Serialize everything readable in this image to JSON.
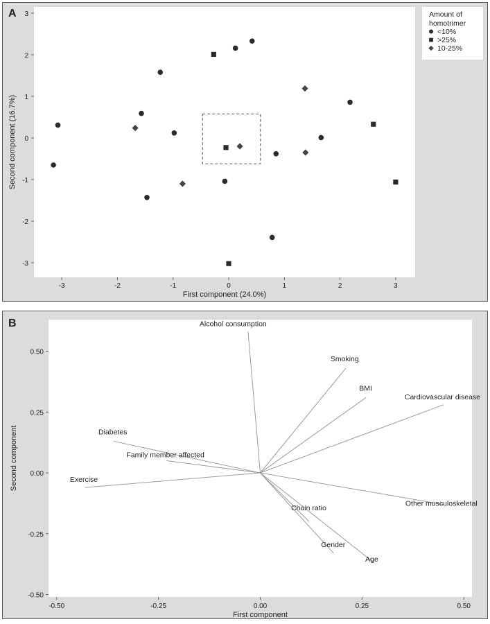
{
  "chart_data": [
    {
      "type": "scatter",
      "panel_label": "A",
      "title": "",
      "xlabel": "First component (24.0%)",
      "ylabel": "Second component (16.7%)",
      "xlim": [
        -3.5,
        3.35
      ],
      "ylim": [
        -3.35,
        3.15
      ],
      "xticks": [
        -3,
        -2,
        -1,
        0,
        1,
        2,
        3
      ],
      "yticks": [
        3,
        2,
        1,
        0,
        -1,
        -2,
        -3
      ],
      "grid": false,
      "legend": {
        "title_line1": "Amount of",
        "title_line2": "homotrimer",
        "placement": "top-right"
      },
      "highlight_box": {
        "x": [
          -0.47,
          0.57
        ],
        "y": [
          -0.62,
          0.58
        ]
      },
      "series": [
        {
          "name": "<10%",
          "marker": "circle",
          "points": [
            [
              -3.15,
              -0.65
            ],
            [
              -3.07,
              0.31
            ],
            [
              -1.23,
              1.58
            ],
            [
              -1.57,
              0.59
            ],
            [
              -0.98,
              0.12
            ],
            [
              -1.47,
              -1.43
            ],
            [
              0.12,
              2.16
            ],
            [
              0.42,
              2.33
            ],
            [
              -0.07,
              -1.04
            ],
            [
              0.85,
              -0.38
            ],
            [
              1.66,
              0.01
            ],
            [
              2.18,
              0.86
            ],
            [
              0.78,
              -2.39
            ]
          ]
        },
        {
          "name": ">25%",
          "marker": "square",
          "points": [
            [
              -0.27,
              2.01
            ],
            [
              -0.05,
              -0.23
            ],
            [
              0.0,
              -3.02
            ],
            [
              2.6,
              0.33
            ],
            [
              3.0,
              -1.06
            ]
          ]
        },
        {
          "name": "10-25%",
          "marker": "diamond",
          "points": [
            [
              -1.68,
              0.24
            ],
            [
              -0.83,
              -1.1
            ],
            [
              0.2,
              -0.2
            ],
            [
              1.37,
              1.19
            ],
            [
              1.38,
              -0.35
            ]
          ]
        }
      ]
    },
    {
      "type": "biplot",
      "panel_label": "B",
      "title": "",
      "xlabel": "First component",
      "ylabel": "Second component",
      "xlim": [
        -0.52,
        0.52
      ],
      "ylim": [
        -0.51,
        0.63
      ],
      "xticks": [
        -0.5,
        -0.25,
        0.0,
        0.25,
        0.5
      ],
      "xtick_labels": [
        "-0.50",
        "-0.25",
        "0.00",
        "0.25",
        "0.50"
      ],
      "yticks": [
        0.5,
        0.25,
        0.0,
        -0.25,
        -0.5
      ],
      "ytick_labels": [
        "0.50",
        "0.25",
        "0.00",
        "-0.25",
        "-0.50"
      ],
      "grid": false,
      "vectors": [
        {
          "name": "Alcohol consumption",
          "x": -0.03,
          "y": 0.58
        },
        {
          "name": "Smoking",
          "x": 0.21,
          "y": 0.43
        },
        {
          "name": "BMI",
          "x": 0.26,
          "y": 0.31
        },
        {
          "name": "Cardiovascular disease",
          "x": 0.45,
          "y": 0.28
        },
        {
          "name": "Diabetes",
          "x": -0.36,
          "y": 0.13
        },
        {
          "name": "Family member affected",
          "x": -0.23,
          "y": 0.05
        },
        {
          "name": "Exercise",
          "x": -0.43,
          "y": -0.06
        },
        {
          "name": "Other musculoskeletal",
          "x": 0.45,
          "y": -0.13
        },
        {
          "name": "Chain ratio",
          "x": 0.12,
          "y": -0.2
        },
        {
          "name": "Gender",
          "x": 0.18,
          "y": -0.33
        },
        {
          "name": "Age",
          "x": 0.28,
          "y": -0.37
        }
      ]
    }
  ]
}
